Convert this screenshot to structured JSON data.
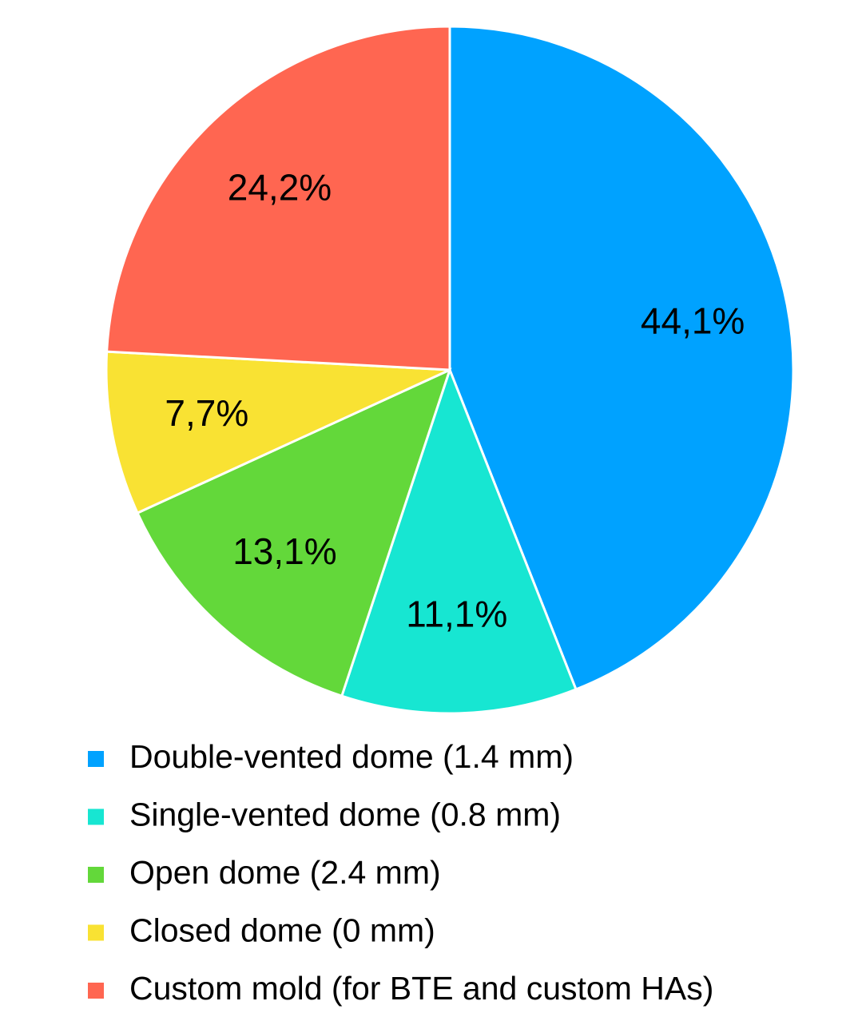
{
  "chart_data": {
    "type": "pie",
    "categories": [
      "Double-vented dome (1.4 mm)",
      "Single-vented dome (0.8 mm)",
      "Open dome (2.4 mm)",
      "Closed dome (0 mm)",
      "Custom mold (for BTE and custom HAs)"
    ],
    "values": [
      44.1,
      11.1,
      13.1,
      7.7,
      24.2
    ],
    "value_labels": [
      "44,1%",
      "11,1%",
      "13,1%",
      "7,7%",
      "24,2%"
    ],
    "colors": [
      "#00a2ff",
      "#17e6d2",
      "#63d83a",
      "#f9e233",
      "#ff6651"
    ],
    "legend": "bottom"
  }
}
